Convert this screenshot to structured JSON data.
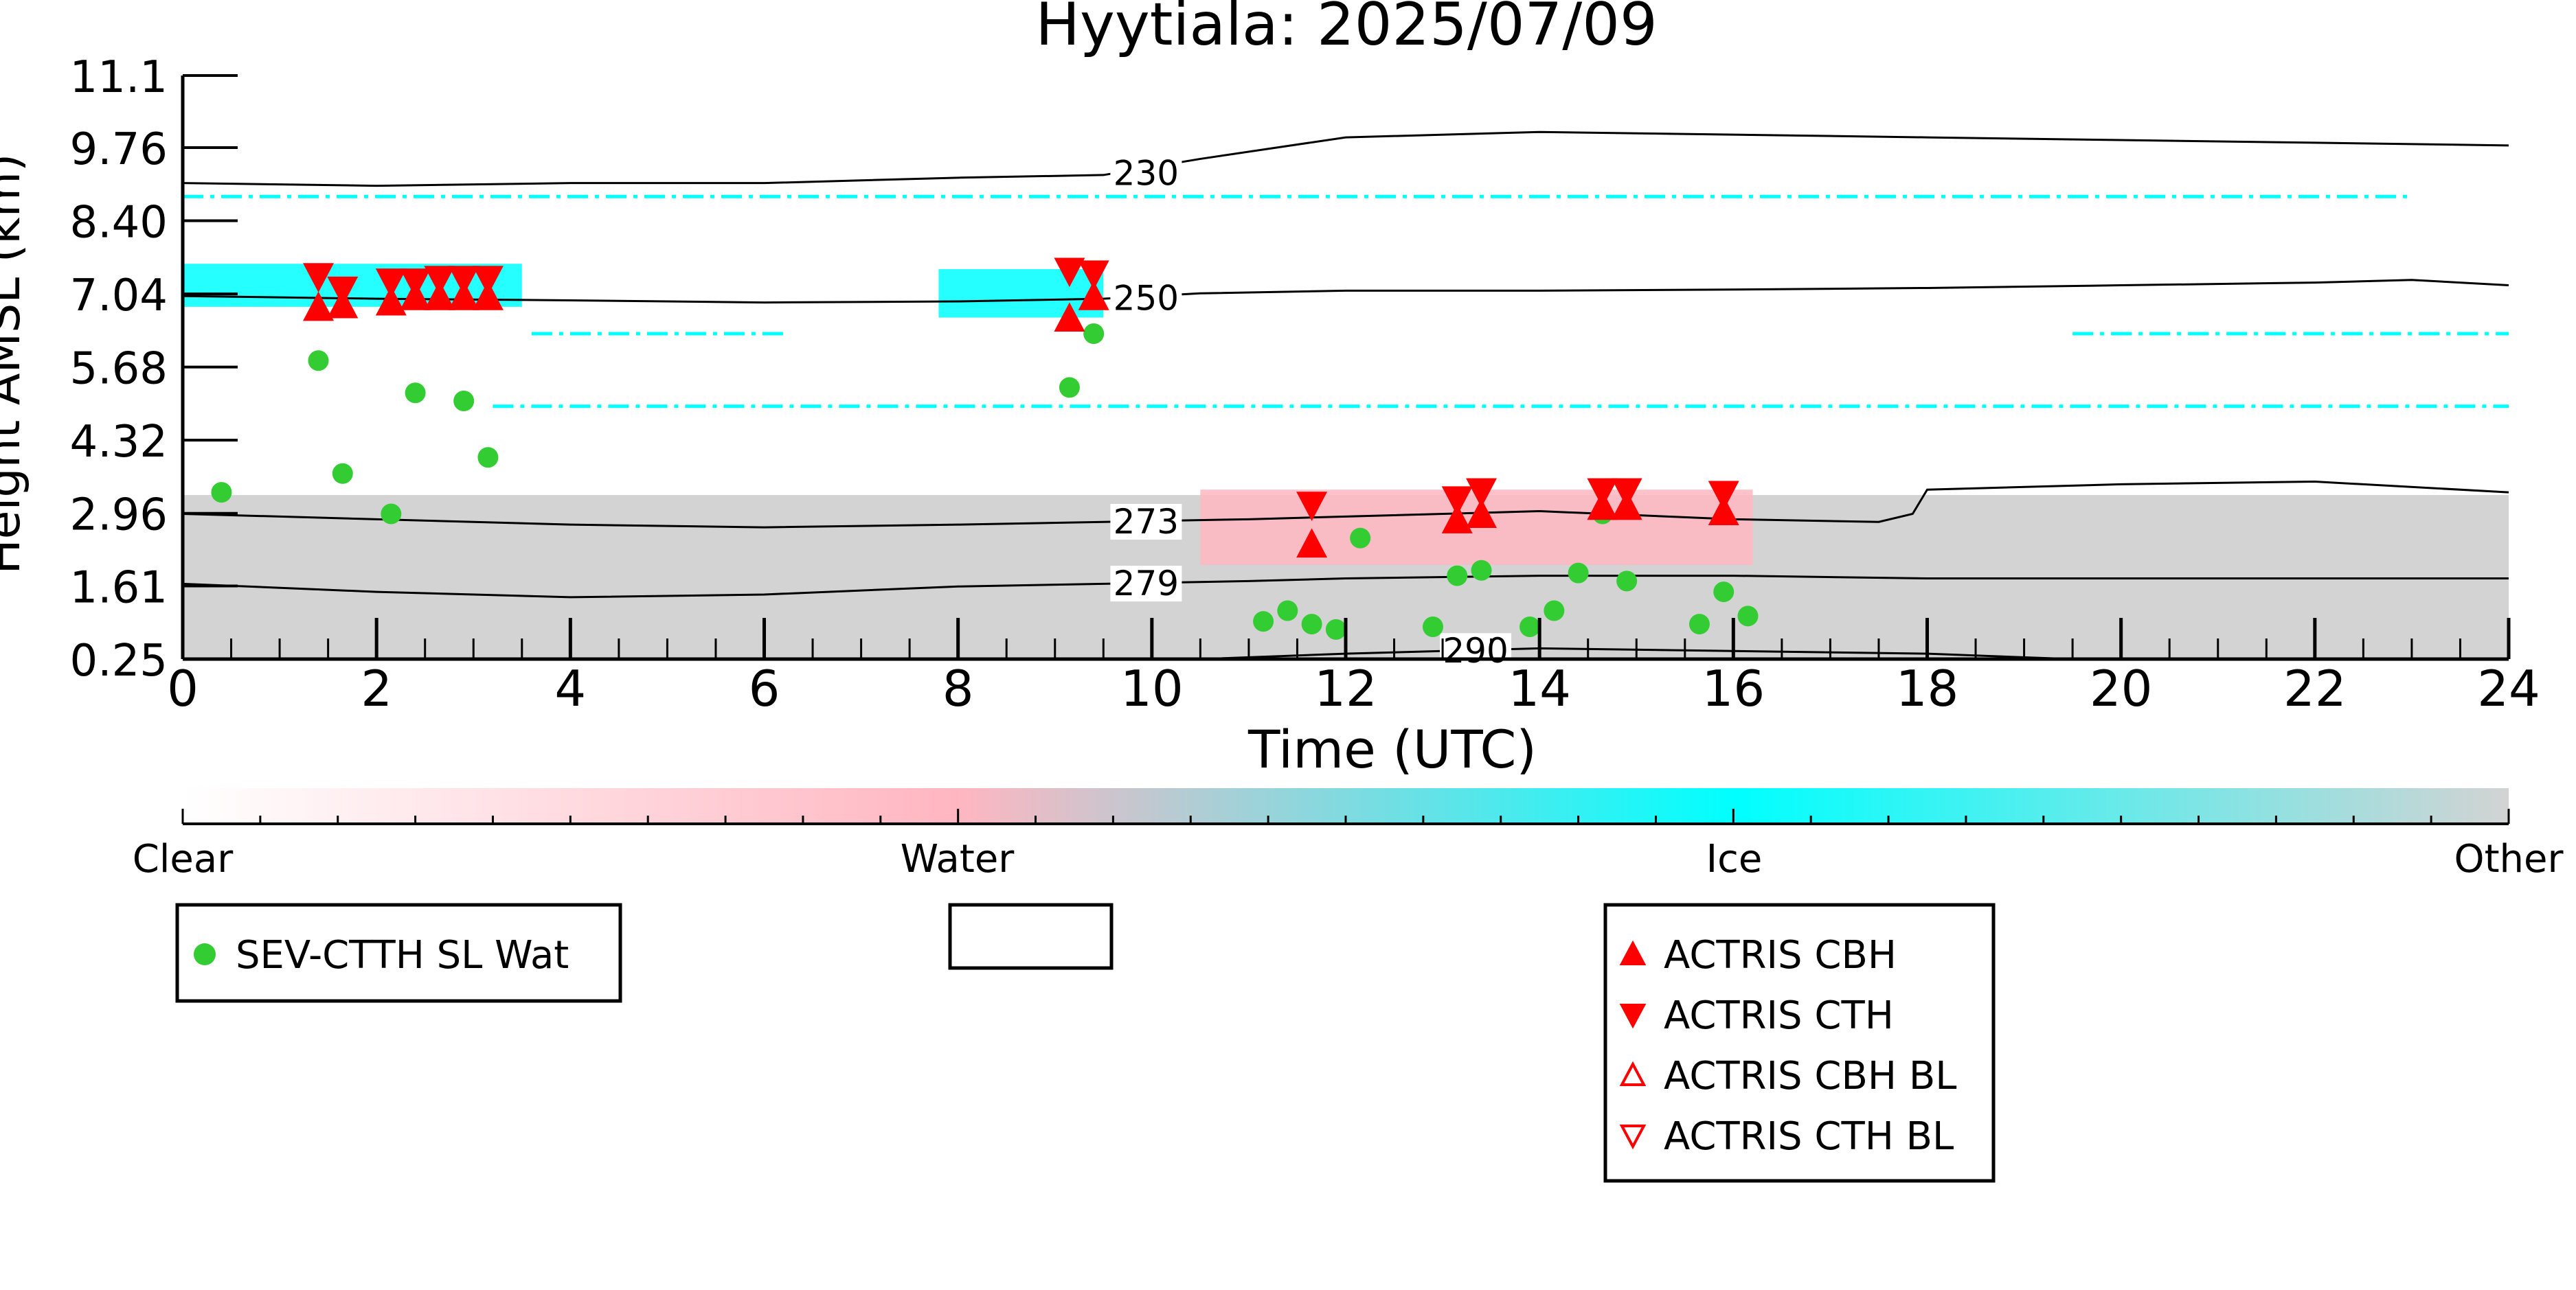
{
  "chart_data": {
    "type": "scatter",
    "title": "Hyytiala: 2025/07/09",
    "xlabel": "Time (UTC)",
    "ylabel": "Height AMSL (km)",
    "xlim": [
      0,
      24
    ],
    "ylim": [
      0.25,
      11.1
    ],
    "x_ticks": [
      0,
      2,
      4,
      6,
      8,
      10,
      12,
      14,
      16,
      18,
      20,
      22,
      24
    ],
    "y_tick_labels": [
      "0.25",
      "1.61",
      "2.96",
      "4.32",
      "5.68",
      "7.04",
      "8.40",
      "9.76",
      "11.1"
    ],
    "y_tick_values": [
      0.25,
      1.61,
      2.96,
      4.32,
      5.68,
      7.04,
      8.4,
      9.76,
      11.1
    ],
    "colorbar": {
      "labels": [
        "Clear",
        "Water",
        "Ice",
        "Other"
      ],
      "positions": [
        0,
        0.333,
        0.667,
        1
      ],
      "colors": {
        "clear": "#ffffff",
        "water": "#ffb6c1",
        "ice": "#00ffff",
        "other": "#d3d3d3"
      }
    },
    "background_regions": [
      {
        "class": "other",
        "x": [
          0,
          24
        ],
        "y": [
          0.25,
          3.3
        ]
      },
      {
        "class": "ice",
        "x": [
          0,
          3.5
        ],
        "y": [
          6.8,
          7.6
        ]
      },
      {
        "class": "ice",
        "x": [
          7.8,
          9.5
        ],
        "y": [
          6.6,
          7.5
        ]
      },
      {
        "class": "water",
        "x": [
          10.5,
          16.2
        ],
        "y": [
          2.0,
          3.4
        ]
      }
    ],
    "thin_layers": [
      {
        "class": "ice",
        "x": [
          0,
          23
        ],
        "y": 8.85
      },
      {
        "class": "ice",
        "x": [
          3.6,
          6.2
        ],
        "y": 6.3
      },
      {
        "class": "ice",
        "x": [
          19.5,
          24
        ],
        "y": 6.3
      },
      {
        "class": "ice",
        "x": [
          3.2,
          24
        ],
        "y": 4.95
      }
    ],
    "contours": [
      {
        "label": "230",
        "label_x": 9.6,
        "x": [
          0,
          2,
          4,
          6,
          8,
          9.5,
          10.5,
          12,
          14,
          16,
          18,
          20,
          22,
          24
        ],
        "y": [
          9.1,
          9.05,
          9.1,
          9.1,
          9.2,
          9.25,
          9.55,
          9.95,
          10.05,
          10.0,
          9.95,
          9.9,
          9.85,
          9.8
        ]
      },
      {
        "label": "250",
        "label_x": 9.6,
        "x": [
          0,
          2,
          4,
          6,
          8,
          9.5,
          10.5,
          12,
          14,
          16,
          18,
          20,
          22,
          23,
          24
        ],
        "y": [
          7.0,
          6.95,
          6.92,
          6.88,
          6.9,
          6.95,
          7.05,
          7.1,
          7.1,
          7.12,
          7.15,
          7.2,
          7.25,
          7.3,
          7.2
        ]
      },
      {
        "label": "273",
        "label_x": 9.6,
        "x": [
          0,
          2,
          4,
          6,
          8,
          9.5,
          11,
          12,
          14,
          16,
          17.5,
          17.85,
          18,
          20,
          22,
          24
        ],
        "y": [
          2.95,
          2.85,
          2.75,
          2.7,
          2.75,
          2.8,
          2.85,
          2.9,
          3.0,
          2.85,
          2.8,
          2.95,
          3.4,
          3.5,
          3.55,
          3.35
        ]
      },
      {
        "label": "279",
        "label_x": 9.6,
        "x": [
          0,
          2,
          4,
          6,
          8,
          9.5,
          11,
          12,
          14,
          16,
          18,
          20,
          22,
          24
        ],
        "y": [
          1.65,
          1.5,
          1.4,
          1.45,
          1.6,
          1.65,
          1.7,
          1.75,
          1.8,
          1.8,
          1.75,
          1.75,
          1.75,
          1.75
        ]
      },
      {
        "label": "290",
        "label_x": 13.0,
        "x": [
          10.5,
          12,
          13,
          14,
          16,
          18,
          19.5
        ],
        "y": [
          0.25,
          0.35,
          0.4,
          0.45,
          0.4,
          0.35,
          0.25
        ]
      }
    ],
    "series": [
      {
        "name": "SEV-CTTH SL Wat",
        "marker": "circle",
        "color": "#33cc33",
        "points": [
          [
            0.4,
            3.35
          ],
          [
            1.4,
            5.8
          ],
          [
            1.65,
            3.7
          ],
          [
            2.15,
            2.95
          ],
          [
            2.4,
            5.2
          ],
          [
            2.9,
            5.05
          ],
          [
            3.15,
            4.0
          ],
          [
            9.15,
            5.3
          ],
          [
            9.4,
            6.3
          ],
          [
            11.15,
            0.95
          ],
          [
            11.4,
            1.15
          ],
          [
            11.65,
            0.9
          ],
          [
            11.9,
            0.8
          ],
          [
            12.15,
            2.5
          ],
          [
            12.9,
            0.85
          ],
          [
            13.15,
            1.8
          ],
          [
            13.4,
            1.9
          ],
          [
            13.9,
            0.85
          ],
          [
            14.15,
            1.15
          ],
          [
            14.4,
            1.85
          ],
          [
            14.65,
            2.95
          ],
          [
            14.9,
            1.7
          ],
          [
            15.65,
            0.9
          ],
          [
            15.9,
            1.5
          ],
          [
            16.15,
            1.05
          ]
        ]
      },
      {
        "name": "ACTRIS CBH",
        "marker": "triangle-up",
        "color": "#ff0000",
        "points": [
          [
            1.4,
            6.8
          ],
          [
            1.65,
            6.85
          ],
          [
            2.15,
            6.9
          ],
          [
            2.4,
            7.0
          ],
          [
            2.65,
            7.0
          ],
          [
            2.9,
            7.0
          ],
          [
            3.15,
            7.0
          ],
          [
            9.15,
            6.6
          ],
          [
            9.4,
            7.0
          ],
          [
            11.65,
            2.4
          ],
          [
            13.15,
            2.85
          ],
          [
            13.4,
            2.95
          ],
          [
            14.65,
            3.1
          ],
          [
            14.9,
            3.1
          ],
          [
            15.9,
            3.0
          ]
        ]
      },
      {
        "name": "ACTRIS CTH",
        "marker": "triangle-down",
        "color": "#ff0000",
        "points": [
          [
            1.4,
            7.35
          ],
          [
            1.65,
            7.1
          ],
          [
            2.15,
            7.25
          ],
          [
            2.4,
            7.25
          ],
          [
            2.65,
            7.3
          ],
          [
            2.9,
            7.3
          ],
          [
            3.15,
            7.3
          ],
          [
            9.15,
            7.45
          ],
          [
            9.4,
            7.4
          ],
          [
            11.65,
            3.1
          ],
          [
            13.15,
            3.2
          ],
          [
            13.4,
            3.35
          ],
          [
            14.65,
            3.35
          ],
          [
            14.9,
            3.35
          ],
          [
            15.9,
            3.3
          ]
        ]
      },
      {
        "name": "ACTRIS CBH BL",
        "marker": "triangle-up-open",
        "color": "#ff0000",
        "points": []
      },
      {
        "name": "ACTRIS CTH BL",
        "marker": "triangle-down-open",
        "color": "#ff0000",
        "points": []
      }
    ],
    "legends": [
      {
        "placement": "bottom-left",
        "entries": [
          "SEV-CTTH SL Wat"
        ]
      },
      {
        "placement": "bottom-center",
        "entries": []
      },
      {
        "placement": "bottom-right",
        "entries": [
          "ACTRIS CBH",
          "ACTRIS CTH",
          "ACTRIS CBH BL",
          "ACTRIS CTH BL"
        ]
      }
    ]
  }
}
